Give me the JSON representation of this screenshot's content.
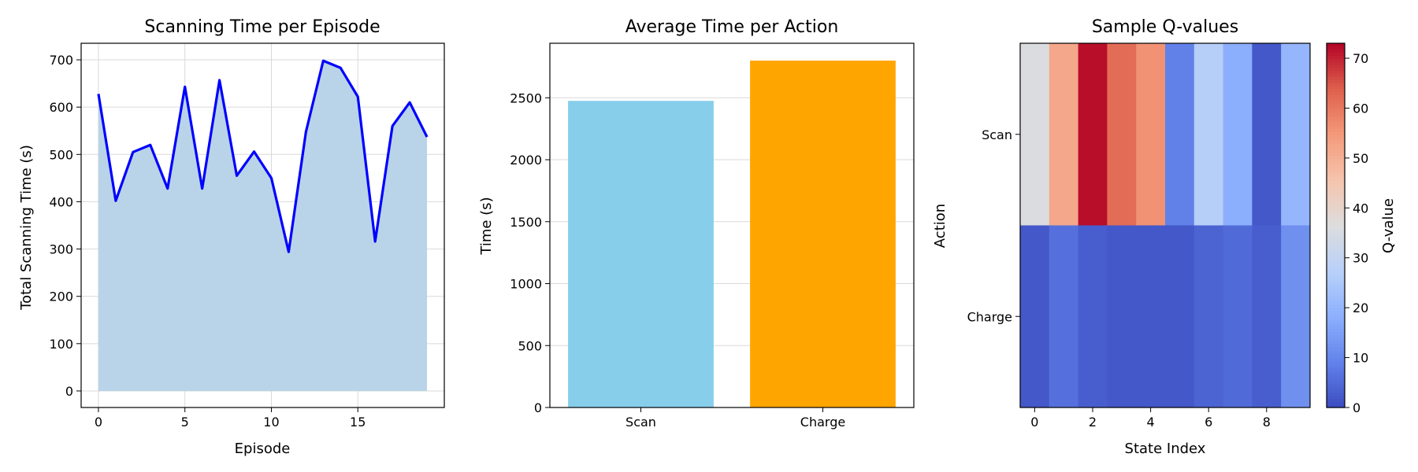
{
  "chart_data": [
    {
      "type": "area",
      "title": "Scanning Time per Episode",
      "xlabel": "Episode",
      "ylabel": "Total Scanning Time (s)",
      "x": [
        0,
        1,
        2,
        3,
        4,
        5,
        6,
        7,
        8,
        9,
        10,
        11,
        12,
        13,
        14,
        15,
        16,
        17,
        18,
        19
      ],
      "values": [
        628,
        402,
        505,
        520,
        428,
        643,
        428,
        657,
        455,
        506,
        450,
        294,
        548,
        698,
        683,
        622,
        316,
        560,
        610,
        537
      ],
      "xlim": [
        -1,
        20
      ],
      "ylim": [
        -35,
        735
      ],
      "xticks": [
        "0",
        "5",
        "10",
        "15"
      ],
      "xtick_values": [
        0,
        5,
        10,
        15
      ],
      "yticks": [
        "0",
        "100",
        "200",
        "300",
        "400",
        "500",
        "600",
        "700"
      ],
      "ytick_values": [
        0,
        100,
        200,
        300,
        400,
        500,
        600,
        700
      ],
      "grid": true,
      "line_color": "#0000ff",
      "fill_color": "#b9d4e8"
    },
    {
      "type": "bar",
      "title": "Average Time per Action",
      "xlabel": "",
      "ylabel": "Time (s)",
      "categories": [
        "Scan",
        "Charge"
      ],
      "values": [
        2475,
        2800
      ],
      "colors": [
        "#87ceeb",
        "#ffa500"
      ],
      "ylim": [
        0,
        2940
      ],
      "yticks": [
        "0",
        "500",
        "1000",
        "1500",
        "2000",
        "2500"
      ],
      "ytick_values": [
        0,
        500,
        1000,
        1500,
        2000,
        2500
      ],
      "grid": true
    },
    {
      "type": "heatmap",
      "title": "Sample Q-values",
      "xlabel": "State Index",
      "ylabel": "Action",
      "rows": [
        "Scan",
        "Charge"
      ],
      "columns": [
        0,
        1,
        2,
        3,
        4,
        5,
        6,
        7,
        8,
        9
      ],
      "xticks": [
        "0",
        "2",
        "4",
        "6",
        "8"
      ],
      "xtick_values": [
        0,
        2,
        4,
        6,
        8
      ],
      "values": [
        [
          36,
          52,
          72,
          62,
          56,
          9,
          27,
          18,
          2,
          20
        ],
        [
          2,
          6,
          3,
          2,
          2,
          2,
          4,
          5,
          3,
          12
        ]
      ],
      "colorbar_label": "Q-value",
      "colorbar_range": [
        0,
        73
      ],
      "colorbar_ticks": [
        "0",
        "10",
        "20",
        "30",
        "40",
        "50",
        "60",
        "70"
      ],
      "colorbar_tick_values": [
        0,
        10,
        20,
        30,
        40,
        50,
        60,
        70
      ],
      "colormap": "coolwarm"
    }
  ]
}
